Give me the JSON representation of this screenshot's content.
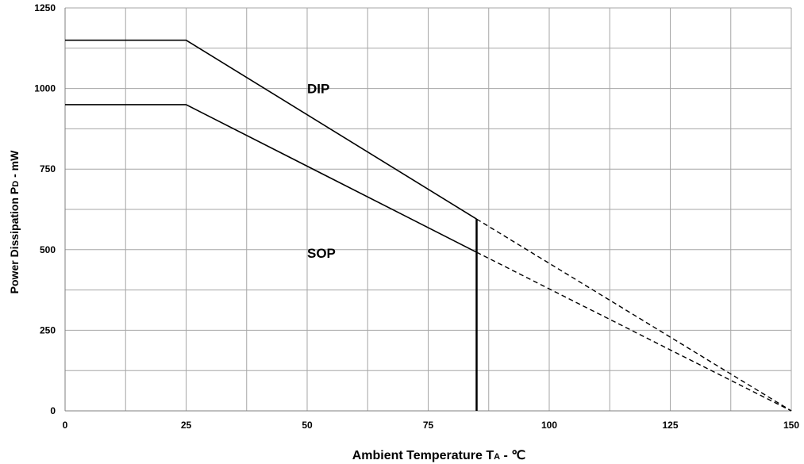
{
  "chart_data": {
    "type": "line",
    "title": "",
    "xlabel": {
      "main": "Ambient Temperature T",
      "sub": "A",
      "suffix": " - ℃"
    },
    "ylabel": {
      "main": "Power Dissipation P",
      "sub": "D",
      "suffix": " - mW"
    },
    "xlim": [
      0,
      150
    ],
    "ylim": [
      0,
      1250
    ],
    "x_ticks": [
      0,
      25,
      50,
      75,
      100,
      125,
      150
    ],
    "y_ticks": [
      0,
      250,
      500,
      750,
      1000,
      1250
    ],
    "x_minor_step": 12.5,
    "y_minor_step": 125,
    "grid": true,
    "series": [
      {
        "annotation": "DIP",
        "solid": [
          [
            0,
            1150
          ],
          [
            25,
            1150
          ],
          [
            85,
            595
          ]
        ],
        "dashed": [
          [
            85,
            595
          ],
          [
            150,
            0
          ]
        ]
      },
      {
        "annotation": "SOP",
        "solid": [
          [
            0,
            950
          ],
          [
            25,
            950
          ],
          [
            85,
            492
          ]
        ],
        "dashed": [
          [
            85,
            492
          ],
          [
            150,
            0
          ]
        ]
      }
    ],
    "vertical_marker": {
      "x": 85,
      "y_from": 0,
      "y_to": 595
    },
    "annotations": [
      {
        "text": "DIP",
        "x": 50,
        "y": 1000
      },
      {
        "text": "SOP",
        "x": 50,
        "y": 490
      }
    ]
  }
}
